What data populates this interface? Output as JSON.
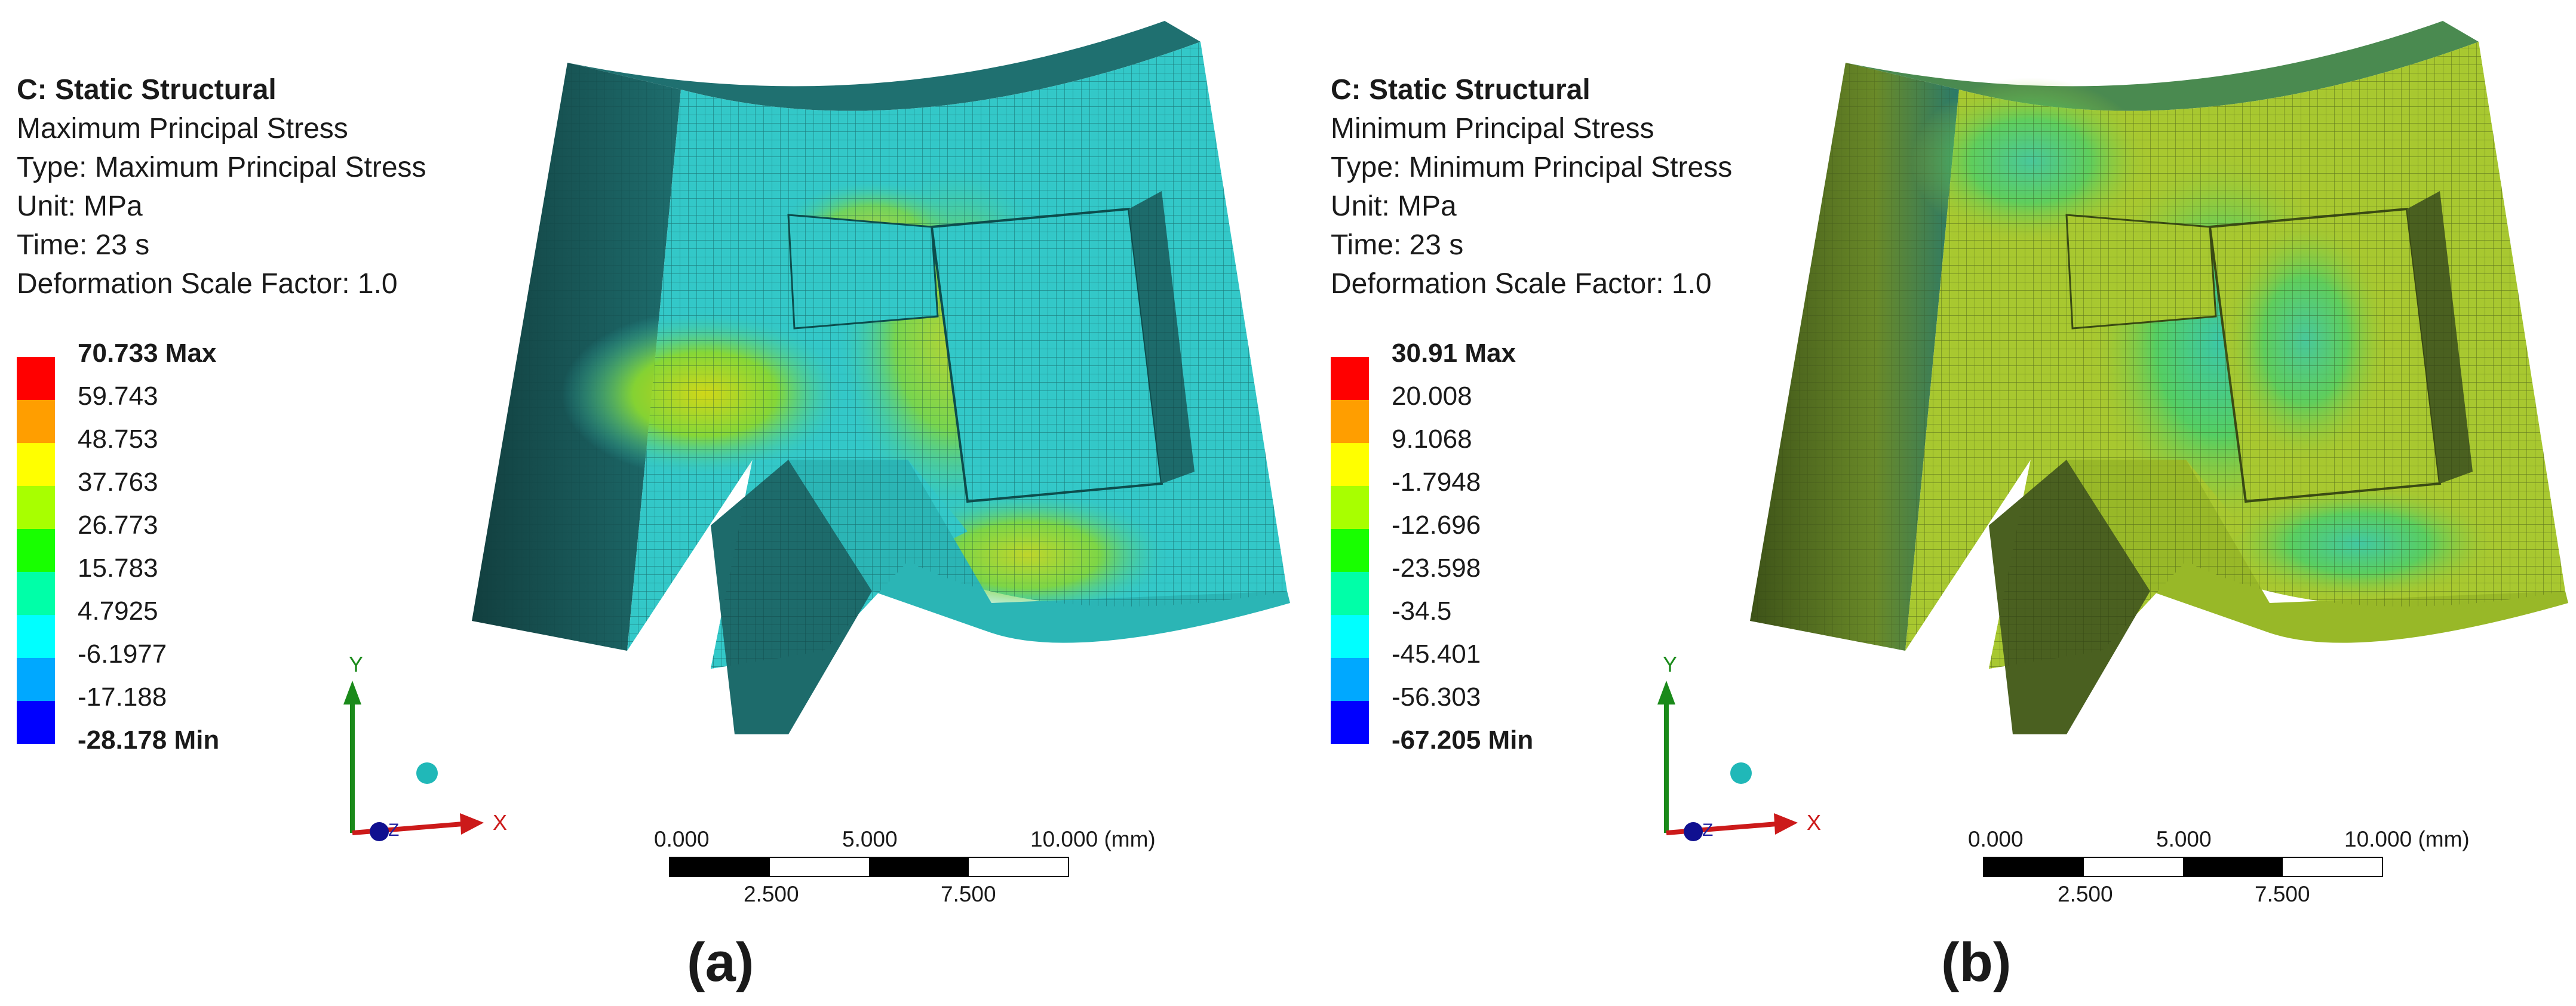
{
  "panels": [
    {
      "analysis": "C: Static Structural",
      "result_name": "Maximum Principal Stress",
      "type_line": "Type: Maximum Principal Stress",
      "unit_line": "Unit: MPa",
      "time_line": "Time: 23 s",
      "scale_line": "Deformation Scale Factor: 1.0",
      "legend": [
        "70.733 Max",
        "59.743",
        "48.753",
        "37.763",
        "26.773",
        "15.783",
        "4.7925",
        "-6.1977",
        "-17.188",
        "-28.178 Min"
      ],
      "caption": "(a)"
    },
    {
      "analysis": "C: Static Structural",
      "result_name": "Minimum Principal Stress",
      "type_line": "Type: Minimum Principal Stress",
      "unit_line": "Unit: MPa",
      "time_line": "Time: 23 s",
      "scale_line": "Deformation Scale Factor: 1.0",
      "legend": [
        "30.91 Max",
        "20.008",
        "9.1068",
        "-1.7948",
        "-12.696",
        "-23.598",
        "-34.5",
        "-45.401",
        "-56.303",
        "-67.205 Min"
      ],
      "caption": "(b)"
    }
  ],
  "legend_colors": [
    "#ff0000",
    "#ff9e00",
    "#ffff00",
    "#a8ff00",
    "#18ff00",
    "#00ffa8",
    "#00ffff",
    "#00a8ff",
    "#0000ff"
  ],
  "scale_bar": {
    "top_labels": [
      "0.000",
      "5.000",
      "10.000 (mm)"
    ],
    "bottom_labels": [
      "2.500",
      "7.500"
    ]
  },
  "triad": {
    "x": "X",
    "y": "Y",
    "z": "Z"
  },
  "contour_colors": {
    "panel_a_main": "#33c8c8",
    "panel_a_hot": "#b8d820",
    "panel_a_dark": "#1d6b6b",
    "panel_b_main": "#a8c830",
    "panel_b_cool": "#30c8a8",
    "panel_b_dark": "#4a6020"
  }
}
